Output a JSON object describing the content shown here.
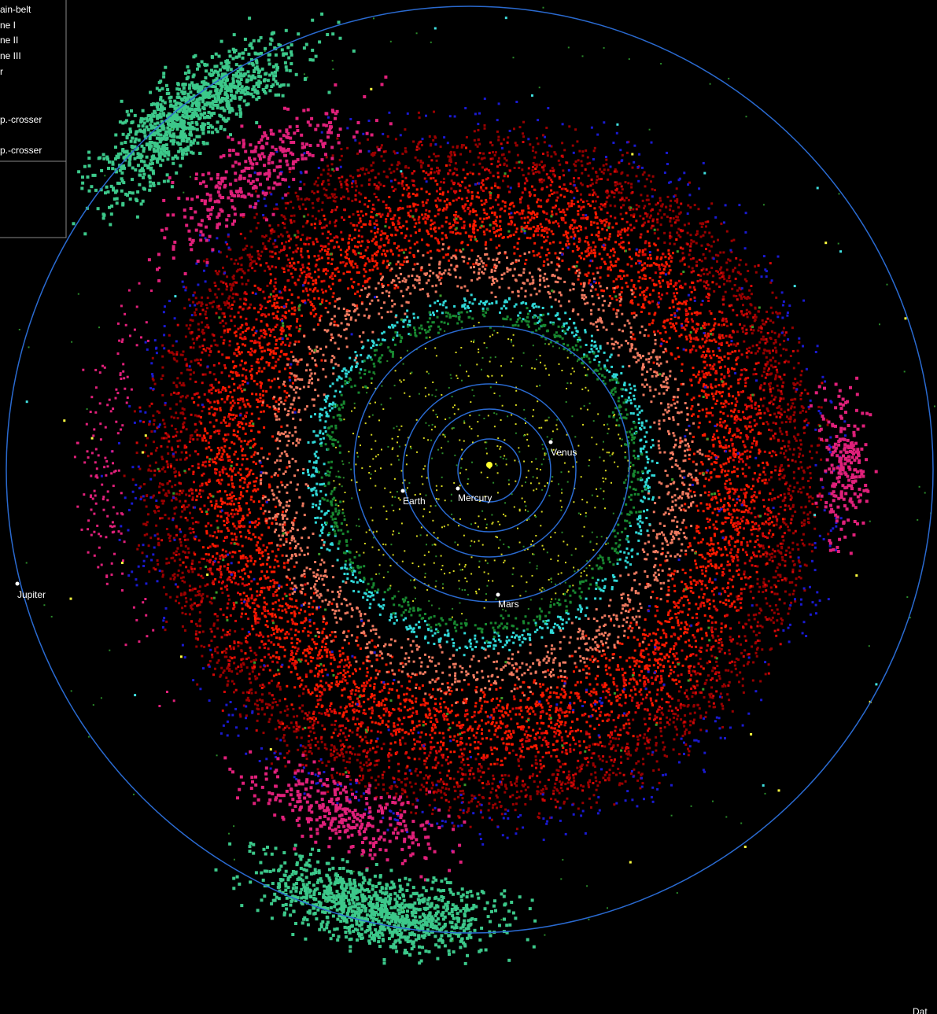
{
  "legend": {
    "items": [
      "ain-belt",
      "ne I",
      "ne II",
      "ne III",
      "r",
      "p.-crosser",
      "p.-crosser"
    ]
  },
  "planets": [
    {
      "label": "Venus"
    },
    {
      "label": "Earth"
    },
    {
      "label": "Mercury"
    },
    {
      "label": "Mars"
    },
    {
      "label": "Jupiter"
    }
  ],
  "footer": "Dat"
}
